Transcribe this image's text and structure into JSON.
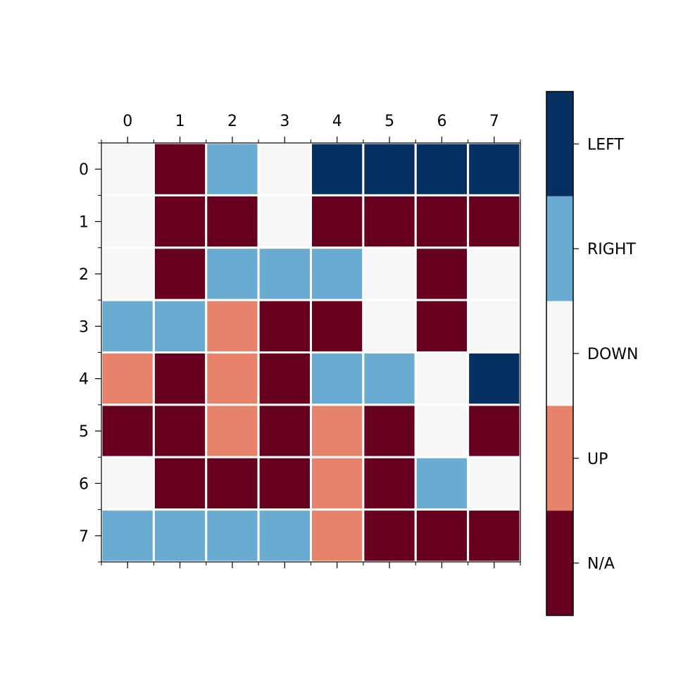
{
  "chart_data": {
    "type": "heatmap",
    "title": "",
    "xlabel": "",
    "ylabel": "",
    "x_ticks": [
      "0",
      "1",
      "2",
      "3",
      "4",
      "5",
      "6",
      "7"
    ],
    "y_ticks": [
      "0",
      "1",
      "2",
      "3",
      "4",
      "5",
      "6",
      "7"
    ],
    "x_axis_position": "top",
    "categories": [
      "N/A",
      "UP",
      "DOWN",
      "RIGHT",
      "LEFT"
    ],
    "category_colors": {
      "N/A": "#67001f",
      "UP": "#e6836a",
      "DOWN": "#f7f7f7",
      "RIGHT": "#6aabd1",
      "LEFT": "#053061"
    },
    "colorbar_order_top_to_bottom": [
      "LEFT",
      "RIGHT",
      "DOWN",
      "UP",
      "N/A"
    ],
    "grid_lines": "white",
    "values": [
      [
        "DOWN",
        "N/A",
        "RIGHT",
        "DOWN",
        "LEFT",
        "LEFT",
        "LEFT",
        "LEFT"
      ],
      [
        "DOWN",
        "N/A",
        "N/A",
        "DOWN",
        "N/A",
        "N/A",
        "N/A",
        "N/A"
      ],
      [
        "DOWN",
        "N/A",
        "RIGHT",
        "RIGHT",
        "RIGHT",
        "DOWN",
        "N/A",
        "DOWN"
      ],
      [
        "RIGHT",
        "RIGHT",
        "UP",
        "N/A",
        "N/A",
        "DOWN",
        "N/A",
        "DOWN"
      ],
      [
        "UP",
        "N/A",
        "UP",
        "N/A",
        "RIGHT",
        "RIGHT",
        "DOWN",
        "LEFT"
      ],
      [
        "N/A",
        "N/A",
        "UP",
        "N/A",
        "UP",
        "N/A",
        "DOWN",
        "N/A"
      ],
      [
        "DOWN",
        "N/A",
        "N/A",
        "N/A",
        "UP",
        "N/A",
        "RIGHT",
        "DOWN"
      ],
      [
        "RIGHT",
        "RIGHT",
        "RIGHT",
        "RIGHT",
        "UP",
        "N/A",
        "N/A",
        "N/A"
      ]
    ]
  }
}
